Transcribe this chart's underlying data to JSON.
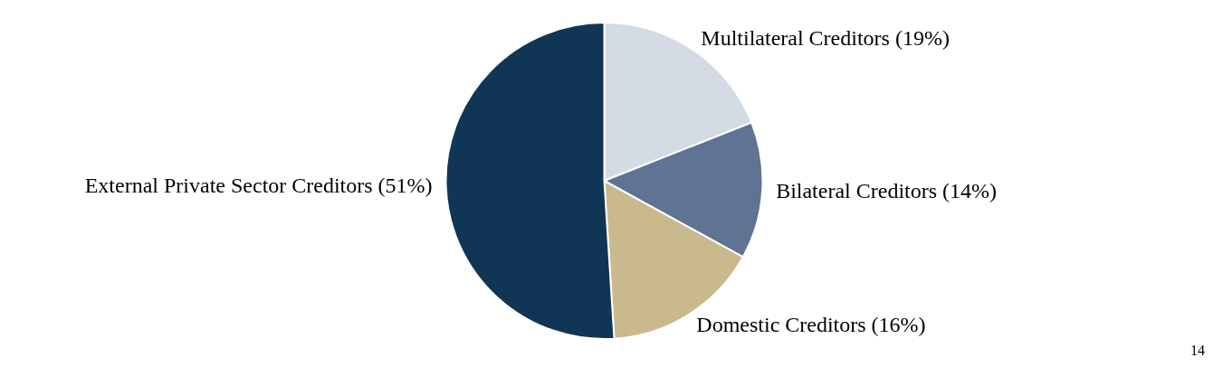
{
  "chart_data": {
    "type": "pie",
    "categories": [
      "Multilateral Creditors (19%)",
      "Bilateral Creditors (14%)",
      "Domestic Creditors (16%)",
      "External Private Sector Creditors (51%)"
    ],
    "values": [
      19,
      14,
      16,
      51
    ],
    "colors": [
      "#d5dbe5",
      "#5f7392",
      "#c9b98c",
      "#113554"
    ],
    "annotations": [
      "14"
    ]
  }
}
